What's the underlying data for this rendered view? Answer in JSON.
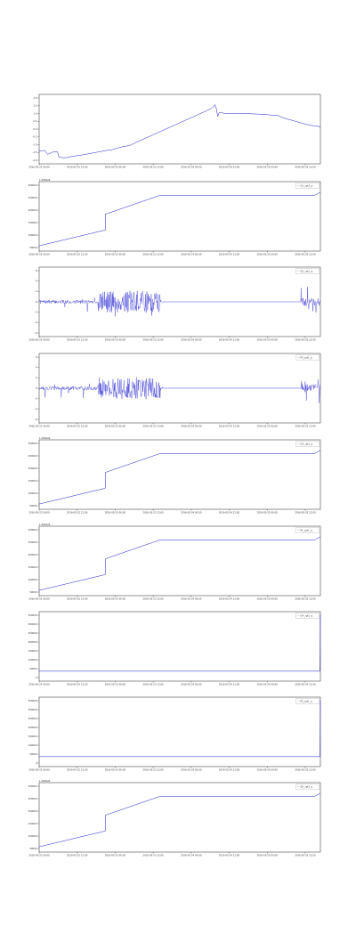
{
  "chart_data": [
    {
      "type": "line",
      "legend": "",
      "offset_label": "",
      "series_color": "#1f1fd0",
      "yticks": [
        "2.0",
        "1.5",
        "1.0",
        "0.5",
        "0.0",
        "-0.5",
        "-1.0",
        "-1.5",
        "-2.0"
      ],
      "xticks": [
        "2016-05-22 00:00",
        "2016-05-22 12:00",
        "2016-05-23 00:00",
        "2016-05-23 12:00",
        "2016-05-24 00:00",
        "2016-05-24 12:00",
        "2016-05-25 00:00",
        "2016-05-25 12:00"
      ],
      "ylim": [
        -2.2,
        2.2
      ],
      "points": [
        [
          0.0,
          -1.4
        ],
        [
          0.02,
          -1.35
        ],
        [
          0.03,
          -1.6
        ],
        [
          0.05,
          -1.45
        ],
        [
          0.065,
          -1.42
        ],
        [
          0.07,
          -1.75
        ],
        [
          0.085,
          -1.82
        ],
        [
          0.1,
          -1.8
        ],
        [
          0.12,
          -1.72
        ],
        [
          0.15,
          -1.65
        ],
        [
          0.18,
          -1.55
        ],
        [
          0.21,
          -1.45
        ],
        [
          0.24,
          -1.35
        ],
        [
          0.26,
          -1.3
        ],
        [
          0.28,
          -1.2
        ],
        [
          0.3,
          -1.1
        ],
        [
          0.32,
          -1.05
        ],
        [
          0.35,
          -0.8
        ],
        [
          0.4,
          -0.4
        ],
        [
          0.45,
          0.0
        ],
        [
          0.5,
          0.4
        ],
        [
          0.55,
          0.8
        ],
        [
          0.6,
          1.2
        ],
        [
          0.62,
          1.4
        ],
        [
          0.625,
          1.55
        ],
        [
          0.63,
          1.3
        ],
        [
          0.635,
          0.8
        ],
        [
          0.64,
          1.05
        ],
        [
          0.66,
          1.0
        ],
        [
          0.7,
          1.0
        ],
        [
          0.74,
          0.98
        ],
        [
          0.78,
          0.95
        ],
        [
          0.82,
          0.9
        ],
        [
          0.85,
          0.85
        ],
        [
          0.87,
          0.7
        ],
        [
          0.9,
          0.55
        ],
        [
          0.93,
          0.4
        ],
        [
          0.96,
          0.25
        ],
        [
          1.0,
          0.15
        ]
      ],
      "has_offset": false,
      "markers": []
    },
    {
      "type": "line",
      "legend": "— Q1_cpt1_q",
      "offset_label": "1.4902e9",
      "series_color": "#1f1fd0",
      "yticks": [
        "300000",
        "250000",
        "200000",
        "150000",
        "100000",
        "50000"
      ],
      "xticks": [
        "2016-05-22 00:00",
        "2016-05-22 12:00",
        "2016-05-23 00:00",
        "2016-05-23 12:00",
        "2016-05-24 00:00",
        "2016-05-24 12:00",
        "2016-05-25 00:00",
        "2016-05-25 12:00"
      ],
      "ylim": [
        0,
        330000
      ],
      "points": [
        [
          0.0,
          25000
        ],
        [
          0.235,
          100000
        ],
        [
          0.235,
          175000
        ],
        [
          0.43,
          265000
        ],
        [
          0.45,
          265000
        ],
        [
          0.98,
          265000
        ],
        [
          1.0,
          280000
        ]
      ],
      "has_offset": true,
      "markers": []
    },
    {
      "type": "line",
      "legend": "— Q2_cpt1_q",
      "offset_label": "",
      "series_color": "#1f1fd0",
      "yticks": [
        "6",
        "4",
        "2",
        "0",
        "-2",
        "-4",
        "-6"
      ],
      "xticks": [
        "2016-05-22 00:00",
        "2016-05-22 12:00",
        "2016-05-23 00:00",
        "2016-05-23 12:00",
        "2016-05-24 00:00",
        "2016-05-24 12:00",
        "2016-05-25 00:00",
        "2016-05-25 12:00"
      ],
      "ylim": [
        -7,
        7
      ],
      "noise": {
        "segments": [
          [
            0.0,
            0.44
          ],
          [
            0.93,
            1.0
          ]
        ],
        "burst": [
          0.21,
          0.43
        ],
        "seed": 7
      },
      "points": [],
      "has_offset": false,
      "markers": []
    },
    {
      "type": "line",
      "legend": "— P3_cpt1_q",
      "offset_label": "",
      "series_color": "#1f1fd0",
      "yticks": [
        "6",
        "4",
        "2",
        "0",
        "-2",
        "-4",
        "-6"
      ],
      "xticks": [
        "2016-05-22 00:00",
        "2016-05-22 12:00",
        "2016-05-23 00:00",
        "2016-05-23 12:00",
        "2016-05-24 00:00",
        "2016-05-24 12:00",
        "2016-05-25 00:00",
        "2016-05-25 12:00"
      ],
      "ylim": [
        -7,
        7
      ],
      "noise": {
        "segments": [
          [
            0.0,
            0.44
          ],
          [
            0.93,
            1.0
          ]
        ],
        "burst": [
          0.21,
          0.43
        ],
        "seed": 13
      },
      "points": [],
      "has_offset": false,
      "markers": []
    },
    {
      "type": "line",
      "legend": "— Q3_cpt1_q",
      "offset_label": "1.4902e9",
      "series_color": "#1f1fd0",
      "yticks": [
        "300000",
        "250000",
        "200000",
        "150000",
        "100000",
        "50000"
      ],
      "xticks": [
        "2016-05-22 00:00",
        "2016-05-22 12:00",
        "2016-05-23 00:00",
        "2016-05-23 12:00",
        "2016-05-24 00:00",
        "2016-05-24 12:00",
        "2016-05-25 00:00",
        "2016-05-25 12:00"
      ],
      "ylim": [
        0,
        330000
      ],
      "points": [
        [
          0.0,
          25000
        ],
        [
          0.235,
          100000
        ],
        [
          0.235,
          175000
        ],
        [
          0.43,
          265000
        ],
        [
          0.45,
          265000
        ],
        [
          0.98,
          265000
        ],
        [
          1.0,
          280000
        ]
      ],
      "has_offset": true,
      "markers": []
    },
    {
      "type": "line",
      "legend": "— P1_cpt1_q",
      "offset_label": "1.4902e9",
      "series_color": "#1f1fd0",
      "yticks": [
        "300000",
        "250000",
        "200000",
        "150000",
        "100000",
        "50000"
      ],
      "xticks": [
        "2016-05-22 00:00",
        "2016-05-22 12:00",
        "2016-05-23 00:00",
        "2016-05-23 12:00",
        "2016-05-24 00:00",
        "2016-05-24 12:00",
        "2016-05-25 00:00",
        "2016-05-25 12:00"
      ],
      "ylim": [
        0,
        330000
      ],
      "points": [
        [
          0.0,
          25000
        ],
        [
          0.235,
          100000
        ],
        [
          0.235,
          175000
        ],
        [
          0.43,
          265000
        ],
        [
          0.45,
          265000
        ],
        [
          0.98,
          265000
        ],
        [
          1.0,
          280000
        ]
      ],
      "has_offset": true,
      "markers": []
    },
    {
      "type": "line",
      "legend": "— Q4_cpt1_q",
      "offset_label": "",
      "series_color": "#1f1fd0",
      "yticks": [
        "350000",
        "300000",
        "250000",
        "200000",
        "150000",
        "100000",
        "50000",
        "0"
      ],
      "xticks": [
        "2016-05-22 00:00",
        "2016-05-22 12:00",
        "2016-05-23 00:00",
        "2016-05-23 12:00",
        "2016-05-24 00:00",
        "2016-05-24 12:00",
        "2016-05-25 00:00",
        "2016-05-25 12:00"
      ],
      "ylim": [
        -60000,
        360000
      ],
      "points": [
        [
          0.0,
          0
        ],
        [
          0.998,
          0
        ],
        [
          1.0,
          340000
        ]
      ],
      "has_offset": false,
      "markers": []
    },
    {
      "type": "line",
      "legend": "— P2_cpt1_q",
      "offset_label": "",
      "series_color": "#1f1fd0",
      "yticks": [
        "350000",
        "300000",
        "250000",
        "200000",
        "150000",
        "100000",
        "50000",
        "0"
      ],
      "xticks": [
        "2016-05-22 00:00",
        "2016-05-22 12:00",
        "2016-05-23 00:00",
        "2016-05-23 12:00",
        "2016-05-24 00:00",
        "2016-05-24 12:00",
        "2016-05-25 00:00",
        "2016-05-25 12:00"
      ],
      "ylim": [
        -60000,
        360000
      ],
      "points": [
        [
          0.0,
          0
        ],
        [
          0.998,
          0
        ],
        [
          1.0,
          340000
        ]
      ],
      "has_offset": false,
      "markers": []
    },
    {
      "type": "line",
      "legend": "— Q5_cpt1_q",
      "offset_label": "1.4902e9",
      "series_color": "#1f1fd0",
      "yticks": [
        "300000",
        "250000",
        "200000",
        "150000",
        "100000",
        "50000"
      ],
      "xticks": [
        "2016-05-22 00:00",
        "2016-05-22 12:00",
        "2016-05-23 00:00",
        "2016-05-23 12:00",
        "2016-05-24 00:00",
        "2016-05-24 12:00",
        "2016-05-25 00:00",
        "2016-05-25 12:00"
      ],
      "ylim": [
        0,
        330000
      ],
      "points": [
        [
          0.0,
          25000
        ],
        [
          0.235,
          100000
        ],
        [
          0.235,
          175000
        ],
        [
          0.43,
          265000
        ],
        [
          0.45,
          265000
        ],
        [
          0.98,
          265000
        ],
        [
          1.0,
          280000
        ]
      ],
      "has_offset": true,
      "markers": []
    }
  ]
}
